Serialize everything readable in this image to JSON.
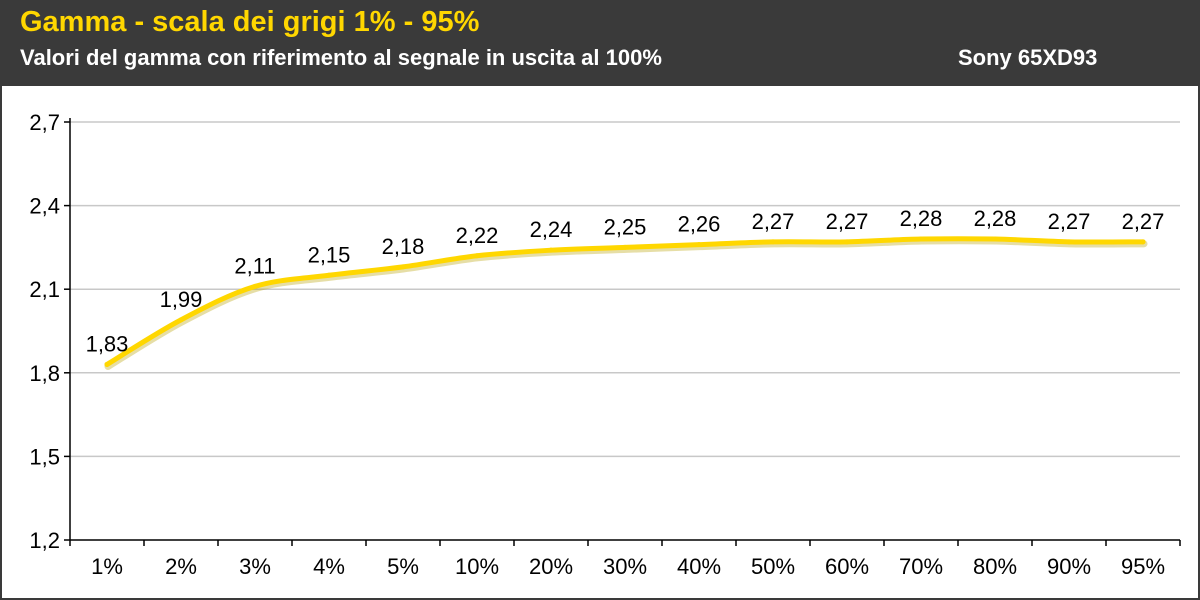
{
  "header": {
    "title": "Gamma - scala dei grigi 1% - 95%",
    "subtitle": "Valori del gamma con riferimento al segnale in uscita al 100%",
    "device": "Sony 65XD93"
  },
  "colors": {
    "title": "#ffd700",
    "header_bg": "#3a3a3a",
    "line": "#ffd700",
    "grid": "#c8c8c8"
  },
  "chart_data": {
    "type": "line",
    "categories": [
      "1%",
      "2%",
      "3%",
      "4%",
      "5%",
      "10%",
      "20%",
      "30%",
      "40%",
      "50%",
      "60%",
      "70%",
      "80%",
      "90%",
      "95%"
    ],
    "series": [
      {
        "values": [
          1.83,
          1.99,
          2.11,
          2.15,
          2.18,
          2.22,
          2.24,
          2.25,
          2.26,
          2.27,
          2.27,
          2.28,
          2.28,
          2.27,
          2.27
        ]
      }
    ],
    "data_labels": [
      "1,83",
      "1,99",
      "2,11",
      "2,15",
      "2,18",
      "2,22",
      "2,24",
      "2,25",
      "2,26",
      "2,27",
      "2,27",
      "2,28",
      "2,28",
      "2,27",
      "2,27"
    ],
    "yticks": [
      1.2,
      1.5,
      1.8,
      2.1,
      2.4,
      2.7
    ],
    "ytick_labels": [
      "1,2",
      "1,5",
      "1,8",
      "2,1",
      "2,4",
      "2,7"
    ],
    "ylim": [
      1.2,
      2.7
    ],
    "grid": "horizontal",
    "legend": "none"
  }
}
